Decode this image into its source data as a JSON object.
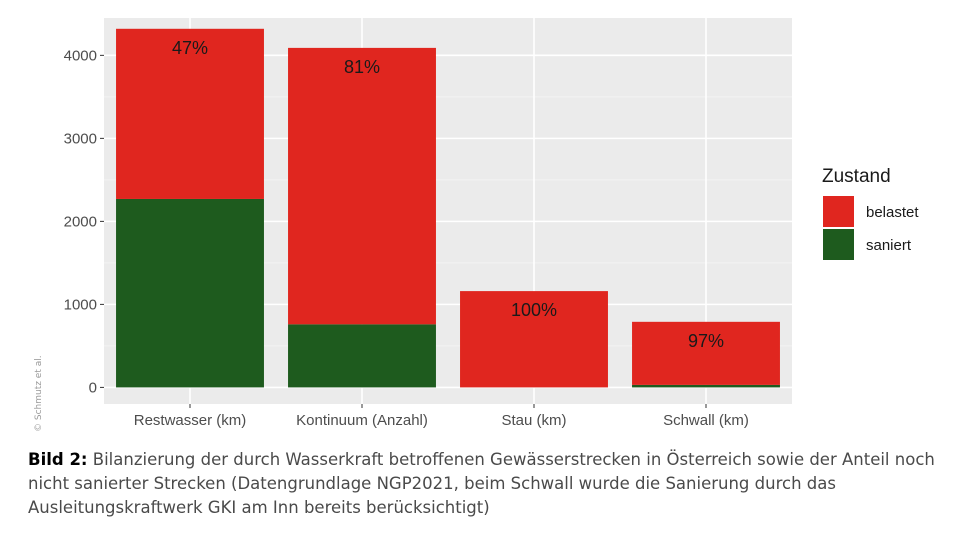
{
  "chart_data": {
    "type": "bar",
    "stacked": true,
    "categories": [
      "Restwasser (km)",
      "Kontinuum (Anzahl)",
      "Stau (km)",
      "Schwall (km)"
    ],
    "series": [
      {
        "name": "saniert",
        "color": "#1e5b1e",
        "values": [
          2270,
          760,
          0,
          30
        ]
      },
      {
        "name": "belastet",
        "color": "#e0261f",
        "values": [
          2050,
          3330,
          1160,
          760
        ]
      }
    ],
    "bar_labels": [
      "47%",
      "81%",
      "100%",
      "97%"
    ],
    "ylim": [
      -200,
      4450
    ],
    "yticks": [
      0,
      1000,
      2000,
      3000,
      4000
    ],
    "xlabel": "",
    "ylabel": "",
    "legend": {
      "title": "Zustand",
      "position": "right",
      "entries": [
        {
          "label": "belastet",
          "color": "#e0261f"
        },
        {
          "label": "saniert",
          "color": "#1e5b1e"
        }
      ]
    },
    "grid": true
  },
  "caption": {
    "label": "Bild 2:",
    "text": " Bilanzierung der durch Wasserkraft betroffenen Gewässerstrecken in Österreich sowie der Anteil noch nicht sanierter Strecken (Datengrundlage NGP2021, beim Schwall wurde die Sanierung durch das Ausleitungskraftwerk GKI am Inn bereits berücksichtigt)"
  },
  "credit": "© Schmutz et al."
}
